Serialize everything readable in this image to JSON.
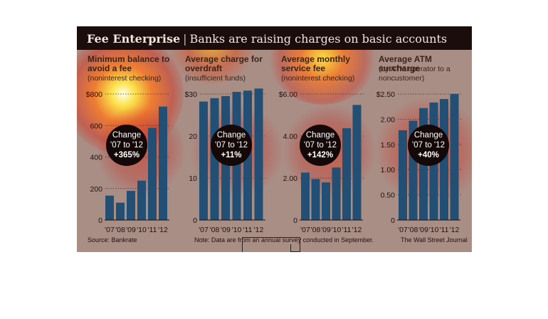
{
  "header": {
    "title": "Fee Enterprise",
    "separator": "|",
    "subtitle": "Banks are raising charges on basic accounts"
  },
  "footer": {
    "source": "Source: Bankrate",
    "note": "Note: Data are from an annual survey conducted in September.",
    "credit": "The Wall Street Journal"
  },
  "colors": {
    "bar": "#234f75",
    "header_bg": "#1a0d0c",
    "badge_bg": "#140908"
  },
  "chart_data": [
    {
      "type": "bar",
      "title": "Minimum balance to avoid a fee",
      "subtitle": "(noninterest checking)",
      "categories": [
        "'07",
        "'08",
        "'09",
        "'10",
        "'11",
        "'12"
      ],
      "values": [
        155,
        110,
        185,
        250,
        585,
        720
      ],
      "ylim": [
        0,
        800
      ],
      "yticks": [
        "0",
        "200",
        "400",
        "600",
        "$800"
      ],
      "tick_values": [
        0,
        200,
        400,
        600,
        800
      ],
      "badge": {
        "line1": "Change",
        "line2": "'07 to '12",
        "pct": "+365%"
      }
    },
    {
      "type": "bar",
      "title": "Average charge for overdraft",
      "subtitle": "(insufficient funds)",
      "categories": [
        "'07",
        "'08",
        "'09",
        "'10",
        "'11",
        "'12"
      ],
      "values": [
        28.2,
        29,
        29.5,
        30.5,
        30.8,
        31.3
      ],
      "ylim": [
        0,
        30
      ],
      "yticks": [
        "0",
        "10",
        "20",
        "$30"
      ],
      "tick_values": [
        0,
        10,
        20,
        30
      ],
      "badge": {
        "line1": "Change",
        "line2": "'07 to '12",
        "pct": "+11%"
      }
    },
    {
      "type": "bar",
      "title": "Average monthly service fee",
      "subtitle": "(noninterest checking)",
      "categories": [
        "'07",
        "'08",
        "'09",
        "'10",
        "'11",
        "'12"
      ],
      "values": [
        2.26,
        1.95,
        1.79,
        2.5,
        4.37,
        5.48
      ],
      "ylim": [
        0,
        6
      ],
      "yticks": [
        "0",
        "2.00",
        "4.00",
        "$6.00"
      ],
      "tick_values": [
        0,
        2,
        4,
        6
      ],
      "badge": {
        "line1": "Change",
        "line2": "'07 to '12",
        "pct": "+142%"
      }
    },
    {
      "type": "bar",
      "title": "Average ATM surcharge",
      "subtitle": "(by ATM operator to a noncustomer)",
      "categories": [
        "'07",
        "'08",
        "'09",
        "'10",
        "'11",
        "'12"
      ],
      "values": [
        1.78,
        1.97,
        2.22,
        2.33,
        2.4,
        2.5
      ],
      "ylim": [
        0,
        2.5
      ],
      "yticks": [
        "0",
        "0.50",
        "1.00",
        "1.50",
        "2.00",
        "$2.50"
      ],
      "tick_values": [
        0,
        0.5,
        1.0,
        1.5,
        2.0,
        2.5
      ],
      "badge": {
        "line1": "Change",
        "line2": "'07 to '12",
        "pct": "+40%"
      }
    }
  ]
}
